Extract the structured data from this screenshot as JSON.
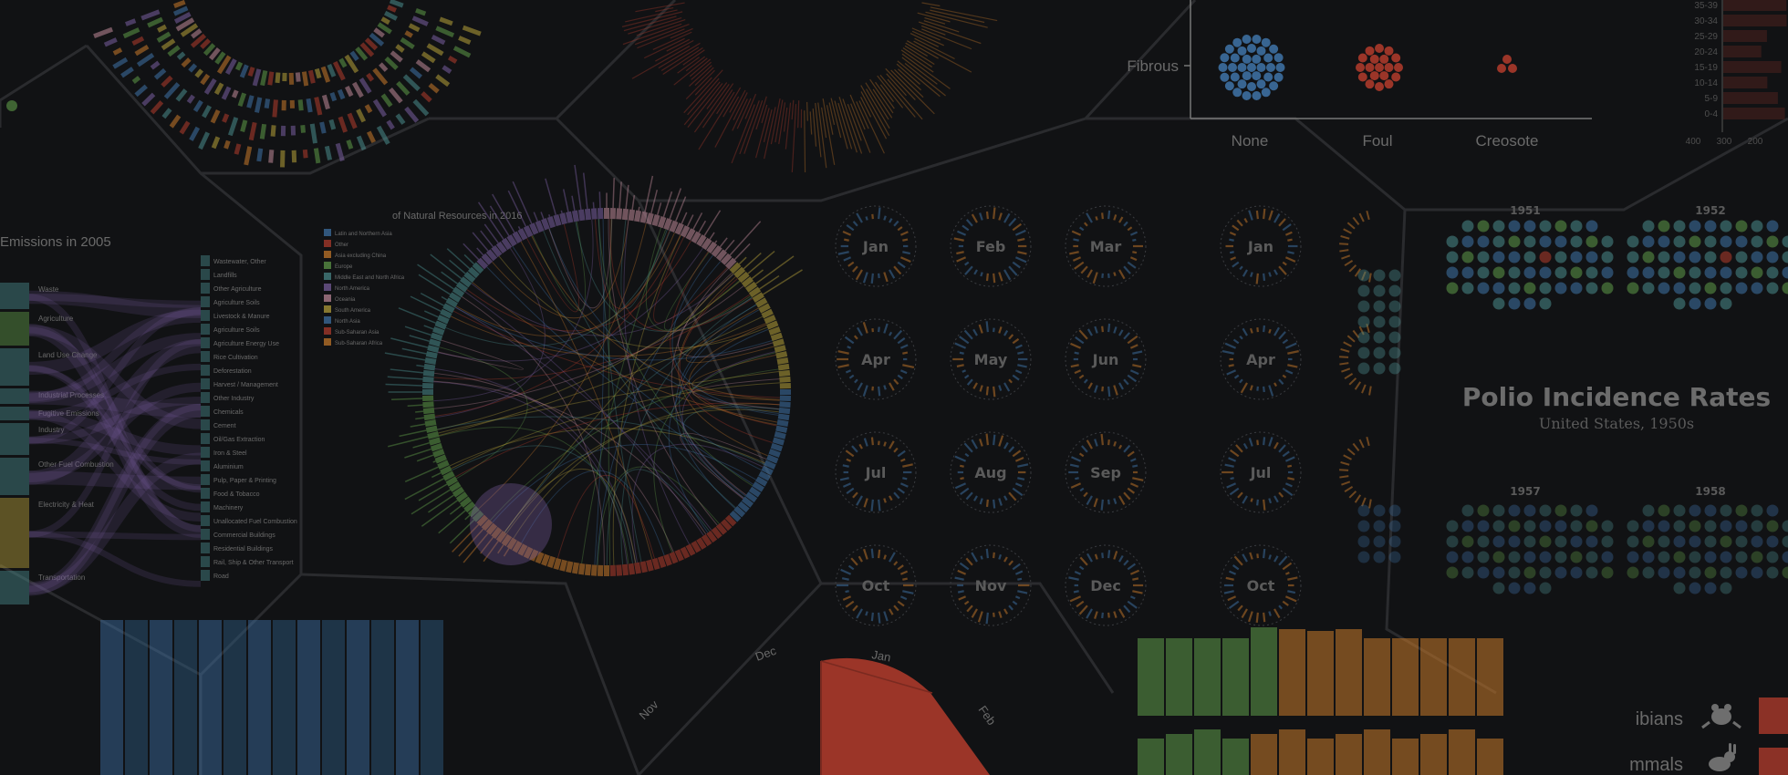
{
  "background": {
    "base": "#111214",
    "hex_edge": "#2a2b2e",
    "overlay_opacity": 0.62
  },
  "colors": {
    "blue": "#3f74a8",
    "red": "#b43c2c",
    "orange": "#c97a2a",
    "green": "#5f9b48",
    "teal": "#4a8c8c",
    "purple": "#7a5fa0",
    "pink": "#c08a9a",
    "yellow": "#b8a23a",
    "grey": "#5a5a5a"
  },
  "scatter_panel": {
    "row_label": "Fibrous",
    "categories": [
      "None",
      "Foul",
      "Creosote"
    ]
  },
  "sankey_panel": {
    "title": "Emissions in 2005",
    "left_labels": [
      "Waste",
      "Agriculture",
      "Land Use Change",
      "Industrial Processes",
      "Fugitive Emissions",
      "Industry",
      "Other Fuel Combustion",
      "Electricity & Heat",
      "Transportation"
    ],
    "right_labels": [
      "Wastewater, Other",
      "Landfills",
      "Other Agriculture",
      "Agriculture Soils",
      "Livestock & Manure",
      "Agriculture Soils",
      "Agriculture Energy Use",
      "Rice Cultivation",
      "Deforestation",
      "Harvest / Management",
      "Other Industry",
      "Chemicals",
      "Cement",
      "Oil/Gas Extraction",
      "Iron & Steel",
      "Aluminium",
      "Pulp, Paper & Printing",
      "Food & Tobacco",
      "Machinery",
      "Unallocated Fuel Combustion",
      "Commercial Buildings",
      "Residential Buildings",
      "Rail, Ship & Other Transport",
      "Road"
    ]
  },
  "chord_panel": {
    "title": "of Natural Resources in 2016",
    "legend": [
      "Latin and Northern Asia",
      "Other",
      "Asia excluding China",
      "Europe",
      "Middle East and North Africa",
      "North America",
      "Oceania",
      "South America",
      "North Asia",
      "Sub-Saharan Asia",
      "Sub-Saharan Africa"
    ]
  },
  "radial_calendar_1": {
    "months": [
      "Jan",
      "Feb",
      "Mar",
      "Apr",
      "May",
      "Jun",
      "Jul",
      "Aug",
      "Sep",
      "Oct",
      "Nov",
      "Dec"
    ]
  },
  "radial_calendar_2": {
    "months": [
      "Jan",
      "Apr",
      "Jul",
      "Oct"
    ]
  },
  "polio_panel": {
    "title": "Polio Incidence Rates",
    "subtitle": "United States, 1950s",
    "years_top": [
      "1951",
      "1952"
    ],
    "years_bottom": [
      "1957",
      "1958"
    ]
  },
  "spiral_panel": {
    "months": [
      "Dec",
      "Jan",
      "Feb",
      "Nov"
    ]
  },
  "pictogram_panel": {
    "rows": [
      "ibians",
      "mmals"
    ]
  },
  "histogram_panel": {
    "axis_ticks": [
      "35-39",
      "30-34",
      "25-29",
      "20-24",
      "15-19",
      "10-14",
      "5-9",
      "0-4"
    ],
    "x_ticks": [
      "400",
      "300",
      "200"
    ]
  }
}
